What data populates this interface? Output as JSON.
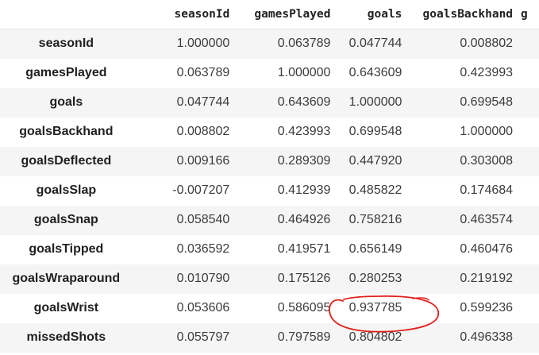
{
  "columns": [
    "seasonId",
    "gamesPlayed",
    "goals",
    "goalsBackhand",
    "g"
  ],
  "rows": [
    {
      "label": "seasonId",
      "values": [
        "1.000000",
        "0.063789",
        "0.047744",
        "0.008802",
        ""
      ]
    },
    {
      "label": "gamesPlayed",
      "values": [
        "0.063789",
        "1.000000",
        "0.643609",
        "0.423993",
        ""
      ]
    },
    {
      "label": "goals",
      "values": [
        "0.047744",
        "0.643609",
        "1.000000",
        "0.699548",
        ""
      ]
    },
    {
      "label": "goalsBackhand",
      "values": [
        "0.008802",
        "0.423993",
        "0.699548",
        "1.000000",
        ""
      ]
    },
    {
      "label": "goalsDeflected",
      "values": [
        "0.009166",
        "0.289309",
        "0.447920",
        "0.303008",
        ""
      ]
    },
    {
      "label": "goalsSlap",
      "values": [
        "-0.007207",
        "0.412939",
        "0.485822",
        "0.174684",
        ""
      ]
    },
    {
      "label": "goalsSnap",
      "values": [
        "0.058540",
        "0.464926",
        "0.758216",
        "0.463574",
        ""
      ]
    },
    {
      "label": "goalsTipped",
      "values": [
        "0.036592",
        "0.419571",
        "0.656149",
        "0.460476",
        ""
      ]
    },
    {
      "label": "goalsWraparound",
      "values": [
        "0.010790",
        "0.175126",
        "0.280253",
        "0.219192",
        ""
      ]
    },
    {
      "label": "goalsWrist",
      "values": [
        "0.053606",
        "0.586095",
        "0.937785",
        "0.599236",
        ""
      ]
    },
    {
      "label": "missedShots",
      "values": [
        "0.055797",
        "0.797589",
        "0.804802",
        "0.496338",
        ""
      ]
    }
  ],
  "colors": {
    "stripe": "#f5f5f5",
    "annotation": "#e0201a"
  }
}
